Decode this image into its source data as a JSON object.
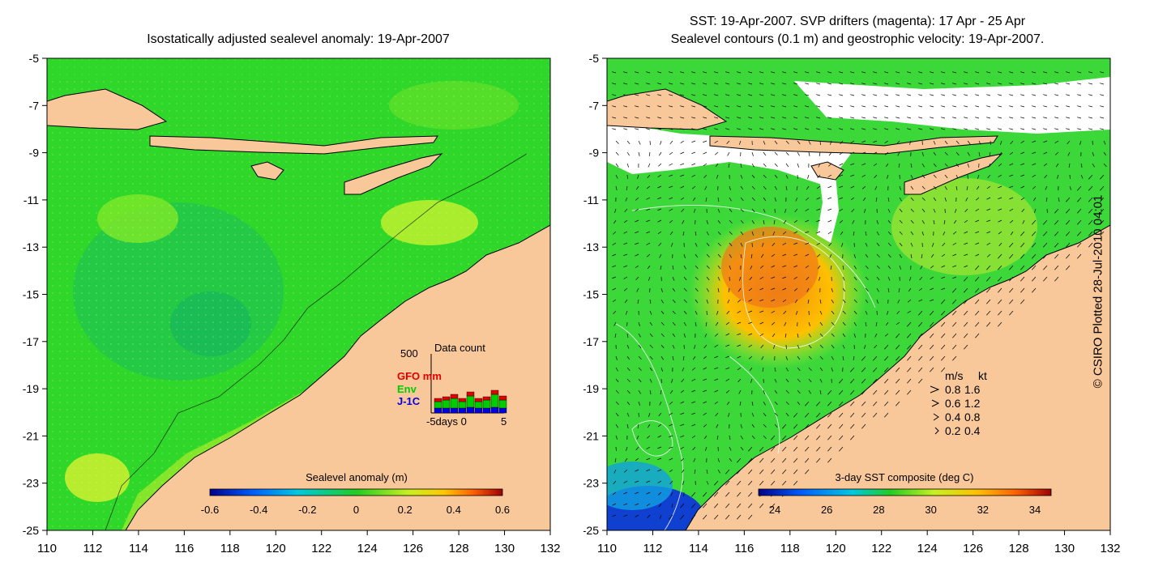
{
  "left_panel": {
    "title": "Isostatically adjusted sealevel anomaly: 19-Apr-2007",
    "y_ticks": [
      "-5",
      "-7",
      "-9",
      "-11",
      "-13",
      "-15",
      "-17",
      "-19",
      "-21",
      "-23",
      "-25"
    ],
    "x_ticks": [
      "110",
      "112",
      "114",
      "116",
      "118",
      "120",
      "122",
      "124",
      "126",
      "128",
      "130",
      "132"
    ],
    "colorbar": {
      "label": "Sealevel anomaly (m)",
      "ticks": [
        "-0.6",
        "-0.4",
        "-0.2",
        "0",
        "0.2",
        "0.4",
        "0.6"
      ]
    },
    "data_count": {
      "title": "Data count",
      "y_max": "500",
      "x_label": "-5days 0",
      "x_end": "5",
      "legend": [
        {
          "label": "GFO mm",
          "color": "#e00000"
        },
        {
          "label": "Env",
          "color": "#00cc00"
        },
        {
          "label": "J-1C",
          "color": "#0000e0"
        }
      ]
    }
  },
  "right_panel": {
    "title_line1": "SST: 19-Apr-2007. SVP drifters (magenta): 17 Apr - 25 Apr",
    "title_line2": "Sealevel contours (0.1 m) and geostrophic velocity: 19-Apr-2007.",
    "y_ticks": [
      "-5",
      "-7",
      "-9",
      "-11",
      "-13",
      "-15",
      "-17",
      "-19",
      "-21",
      "-23",
      "-25"
    ],
    "x_ticks": [
      "110",
      "112",
      "114",
      "116",
      "118",
      "120",
      "122",
      "124",
      "126",
      "128",
      "130",
      "132"
    ],
    "colorbar": {
      "label": "3-day SST composite (deg C)",
      "ticks": [
        "24",
        "26",
        "28",
        "30",
        "32",
        "34"
      ]
    },
    "velocity_key": {
      "header_ms": "m/s",
      "header_kt": "kt",
      "rows": [
        {
          "ms": "0.8",
          "kt": "1.6"
        },
        {
          "ms": "0.6",
          "kt": "1.2"
        },
        {
          "ms": "0.4",
          "kt": "0.8"
        },
        {
          "ms": "0.2",
          "kt": "0.4"
        }
      ]
    }
  },
  "credit": "© CSIRO Plotted 28-Jul-2010 04:01",
  "colors": {
    "land": "#f9c89a",
    "ocean_green": "#33dd22",
    "no_data": "#ffffff"
  }
}
